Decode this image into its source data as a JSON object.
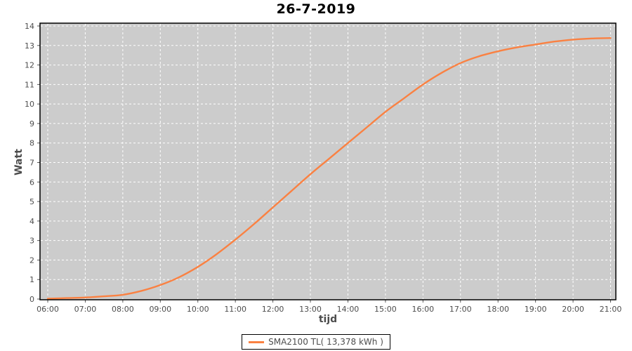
{
  "chart": {
    "title": "26-7-2019",
    "x_axis_label": "tijd",
    "y_axis_label": "Watt",
    "legend_label": "SMA2100 TL( 13,378 kWh )",
    "colors": {
      "series": "#fa8142",
      "plot_background": "#cccccc",
      "gridline": "#ffffff",
      "plot_border": "#000000",
      "tick_label": "#4d4d4d",
      "background": "#ffffff"
    }
  },
  "chart_data": {
    "type": "line",
    "title": "26-7-2019",
    "xlabel": "tijd",
    "ylabel": "Watt",
    "xlim_hours": [
      6,
      21
    ],
    "ylim": [
      0,
      14
    ],
    "grid": true,
    "legend_position": "bottom",
    "x_tick_hours": [
      6,
      7,
      8,
      9,
      10,
      11,
      12,
      13,
      14,
      15,
      16,
      17,
      18,
      19,
      20,
      21
    ],
    "x_tick_labels": [
      "06:00",
      "07:00",
      "08:00",
      "09:00",
      "10:00",
      "11:00",
      "12:00",
      "13:00",
      "14:00",
      "15:00",
      "16:00",
      "17:00",
      "18:00",
      "19:00",
      "20:00",
      "21:00"
    ],
    "y_ticks": [
      0,
      1,
      2,
      3,
      4,
      5,
      6,
      7,
      8,
      9,
      10,
      11,
      12,
      13,
      14
    ],
    "series": [
      {
        "name": "SMA2100 TL( 13,378 kWh )",
        "color": "#fa8142",
        "x_hours": [
          6.0,
          6.5,
          7.0,
          7.5,
          8.0,
          8.5,
          9.0,
          9.5,
          10.0,
          10.5,
          11.0,
          11.5,
          12.0,
          12.5,
          13.0,
          13.5,
          14.0,
          14.5,
          15.0,
          15.5,
          16.0,
          16.5,
          17.0,
          17.5,
          18.0,
          18.5,
          19.0,
          19.5,
          20.0,
          20.5,
          21.0
        ],
        "values": [
          0.02,
          0.05,
          0.08,
          0.14,
          0.22,
          0.42,
          0.72,
          1.12,
          1.65,
          2.3,
          3.05,
          3.85,
          4.7,
          5.55,
          6.4,
          7.2,
          8.0,
          8.8,
          9.6,
          10.3,
          11.0,
          11.6,
          12.1,
          12.45,
          12.7,
          12.9,
          13.05,
          13.2,
          13.3,
          13.36,
          13.38
        ],
        "final_total_kwh_label": "13,378 kWh"
      }
    ]
  }
}
